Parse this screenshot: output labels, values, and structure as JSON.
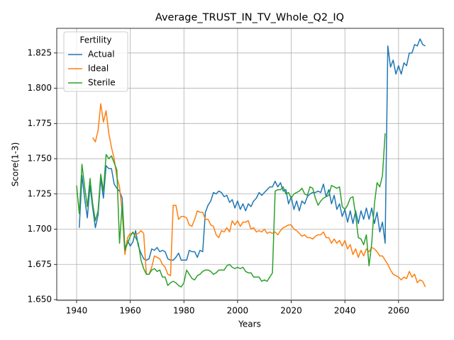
{
  "chart_data": {
    "type": "line",
    "title": "Average_TRUST_IN_TV_Whole_Q2_IQ",
    "x_label": "Years",
    "y_label": "Score(1-3)",
    "legend_title": "Fertility",
    "legend": "upper left",
    "grid": true,
    "xlim": [
      1932.6,
      2076.7
    ],
    "ylim": [
      1.6495,
      1.8425
    ],
    "xticks": [
      1940,
      1960,
      1980,
      2000,
      2020,
      2040,
      2060
    ],
    "yticks": [
      {
        "value": 1.65,
        "label": "1.650"
      },
      1.675,
      {
        "value": 1.7,
        "label": "1.700"
      },
      1.725,
      {
        "value": 1.75,
        "label": "1.750"
      },
      1.775,
      {
        "value": 1.8,
        "label": "1.800"
      },
      1.825
    ],
    "x": [
      1940,
      1941,
      1942,
      1943,
      1944,
      1945,
      1946,
      1947,
      1948,
      1949,
      1950,
      1951,
      1952,
      1953,
      1954,
      1955,
      1956,
      1957,
      1958,
      1959,
      1960,
      1961,
      1962,
      1963,
      1964,
      1965,
      1966,
      1967,
      1968,
      1969,
      1970,
      1971,
      1972,
      1973,
      1974,
      1975,
      1976,
      1977,
      1978,
      1979,
      1980,
      1981,
      1982,
      1983,
      1984,
      1985,
      1986,
      1987,
      1988,
      1989,
      1990,
      1991,
      1992,
      1993,
      1994,
      1995,
      1996,
      1997,
      1998,
      1999,
      2000,
      2001,
      2002,
      2003,
      2004,
      2005,
      2006,
      2007,
      2008,
      2009,
      2010,
      2011,
      2012,
      2013,
      2014,
      2015,
      2016,
      2017,
      2018,
      2019,
      2020,
      2021,
      2022,
      2023,
      2024,
      2025,
      2026,
      2027,
      2028,
      2029,
      2030,
      2031,
      2032,
      2033,
      2034,
      2035,
      2036,
      2037,
      2038,
      2039,
      2040,
      2041,
      2042,
      2043,
      2044,
      2045,
      2046,
      2047,
      2048,
      2049,
      2050,
      2051,
      2052,
      2053,
      2054,
      2055,
      2056,
      2057,
      2058,
      2059,
      2060,
      2061,
      2062,
      2063,
      2064,
      2065,
      2066,
      2067,
      2068,
      2069,
      2070
    ],
    "series": [
      {
        "name": "Actual",
        "color": "#1f77b4",
        "values": [
          null,
          1.701,
          1.738,
          1.722,
          1.708,
          1.731,
          1.715,
          1.701,
          1.71,
          1.736,
          1.722,
          1.745,
          1.743,
          1.743,
          1.732,
          1.729,
          1.727,
          1.722,
          1.686,
          1.692,
          1.688,
          1.691,
          1.699,
          1.688,
          1.683,
          1.679,
          1.678,
          1.679,
          1.686,
          1.685,
          1.687,
          1.684,
          1.685,
          1.684,
          1.679,
          1.678,
          1.678,
          1.68,
          1.683,
          1.678,
          1.678,
          1.678,
          1.685,
          1.684,
          1.684,
          1.68,
          1.685,
          1.684,
          1.712,
          1.717,
          1.72,
          1.726,
          1.725,
          1.727,
          1.726,
          1.723,
          1.724,
          1.719,
          1.721,
          1.715,
          1.72,
          1.714,
          1.718,
          1.713,
          1.718,
          1.716,
          1.72,
          1.722,
          1.726,
          1.724,
          1.726,
          1.728,
          1.73,
          1.73,
          1.734,
          1.73,
          1.733,
          1.727,
          1.728,
          1.718,
          1.723,
          1.714,
          1.72,
          1.713,
          1.72,
          1.718,
          1.723,
          1.725,
          1.726,
          1.726,
          1.727,
          1.726,
          1.732,
          1.723,
          1.728,
          1.718,
          1.724,
          1.714,
          1.718,
          1.709,
          1.714,
          1.705,
          1.713,
          1.704,
          1.713,
          1.704,
          1.713,
          1.707,
          1.715,
          1.707,
          1.715,
          1.704,
          1.712,
          1.698,
          1.705,
          1.69,
          1.83,
          1.815,
          1.82,
          1.81,
          1.816,
          1.81,
          1.818,
          1.816,
          1.825,
          1.825,
          1.831,
          1.83,
          1.835,
          1.831,
          1.83
        ]
      },
      {
        "name": "Ideal",
        "color": "#ff7f0e",
        "values": [
          null,
          null,
          null,
          null,
          null,
          null,
          1.765,
          1.762,
          1.77,
          1.789,
          1.776,
          1.784,
          1.768,
          1.758,
          1.75,
          1.737,
          1.73,
          1.712,
          1.682,
          1.694,
          1.697,
          1.697,
          1.696,
          1.697,
          1.699,
          1.697,
          1.668,
          1.668,
          1.673,
          1.681,
          1.68,
          1.679,
          1.675,
          1.673,
          1.668,
          1.667,
          1.717,
          1.717,
          1.707,
          1.709,
          1.709,
          1.708,
          1.703,
          1.702,
          1.707,
          1.713,
          1.712,
          1.712,
          1.707,
          1.707,
          1.703,
          1.702,
          1.696,
          1.694,
          1.699,
          1.698,
          1.701,
          1.698,
          1.706,
          1.703,
          1.706,
          1.702,
          1.705,
          1.705,
          1.706,
          1.7,
          1.701,
          1.698,
          1.699,
          1.698,
          1.7,
          1.697,
          1.698,
          1.697,
          1.698,
          1.696,
          1.699,
          1.701,
          1.702,
          1.703,
          1.703,
          1.7,
          1.699,
          1.697,
          1.695,
          1.696,
          1.694,
          1.694,
          1.693,
          1.695,
          1.696,
          1.696,
          1.698,
          1.694,
          1.694,
          1.69,
          1.693,
          1.69,
          1.692,
          1.688,
          1.692,
          1.686,
          1.689,
          1.682,
          1.686,
          1.68,
          1.685,
          1.681,
          1.686,
          1.684,
          1.687,
          1.686,
          1.684,
          1.681,
          1.681,
          1.678,
          1.675,
          1.671,
          1.668,
          1.667,
          1.666,
          1.664,
          1.666,
          1.665,
          1.67,
          1.666,
          1.668,
          1.662,
          1.664,
          1.663,
          1.659
        ]
      },
      {
        "name": "Sterile",
        "color": "#2ca02c",
        "values": [
          1.731,
          1.711,
          1.746,
          1.73,
          1.716,
          1.736,
          1.718,
          1.706,
          1.713,
          1.739,
          1.727,
          1.753,
          1.75,
          1.752,
          1.747,
          1.742,
          1.69,
          1.718,
          1.685,
          1.69,
          1.695,
          1.698,
          1.694,
          1.69,
          1.678,
          1.672,
          1.668,
          1.668,
          1.671,
          1.672,
          1.67,
          1.671,
          1.666,
          1.666,
          1.66,
          1.662,
          1.663,
          1.662,
          1.66,
          1.659,
          1.662,
          1.671,
          1.668,
          1.665,
          1.664,
          1.667,
          1.668,
          1.67,
          1.671,
          1.671,
          1.67,
          1.668,
          1.669,
          1.671,
          1.671,
          1.671,
          1.674,
          1.675,
          1.673,
          1.672,
          1.673,
          1.672,
          1.673,
          1.67,
          1.669,
          1.669,
          1.666,
          1.666,
          1.666,
          1.663,
          1.664,
          1.663,
          1.666,
          1.669,
          1.727,
          1.728,
          1.728,
          1.73,
          1.725,
          1.726,
          1.722,
          1.725,
          1.726,
          1.727,
          1.729,
          1.725,
          1.724,
          1.73,
          1.729,
          1.722,
          1.717,
          1.72,
          1.722,
          1.723,
          1.724,
          1.731,
          1.73,
          1.729,
          1.73,
          1.716,
          1.714,
          1.717,
          1.722,
          1.723,
          1.71,
          1.694,
          1.693,
          1.689,
          1.696,
          1.674,
          1.69,
          1.718,
          1.733,
          1.73,
          1.738,
          1.768,
          null,
          null,
          null,
          null,
          null,
          null,
          null,
          null,
          null,
          null,
          null,
          null,
          null,
          null,
          null
        ]
      }
    ]
  }
}
